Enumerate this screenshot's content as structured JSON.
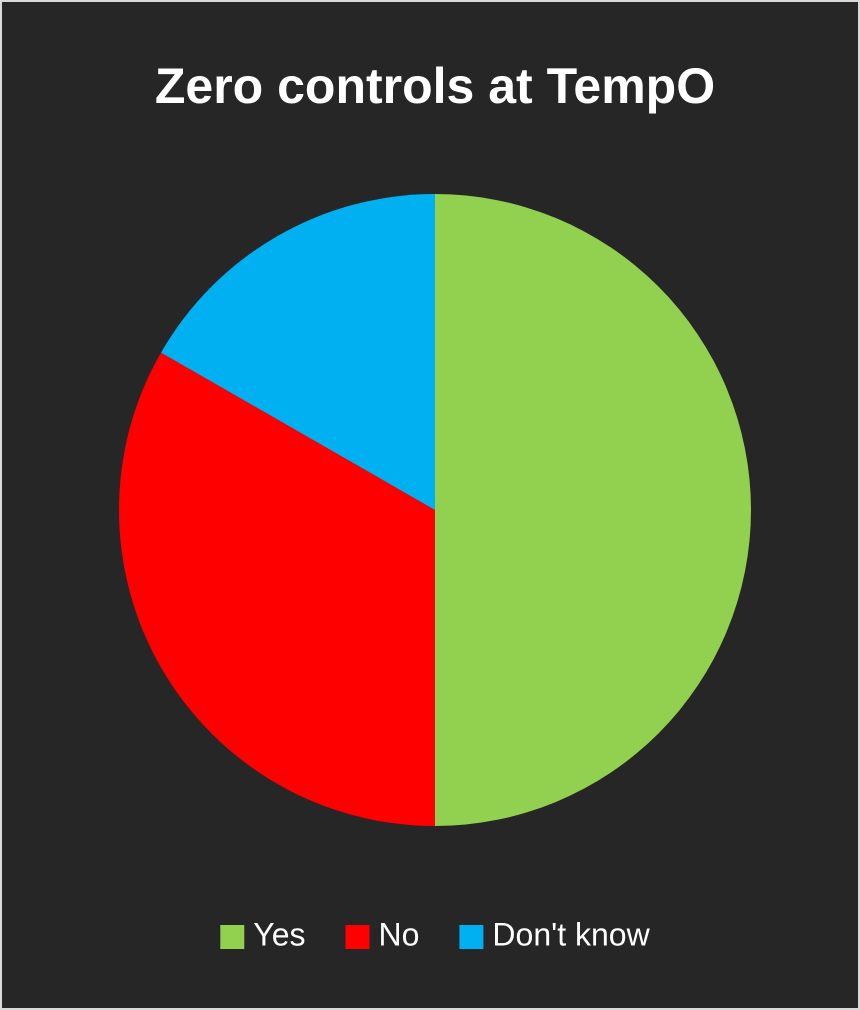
{
  "chart_data": {
    "type": "pie",
    "title": "Zero controls at TempO",
    "categories": [
      "Yes",
      "No",
      "Don't know"
    ],
    "values": [
      50,
      33.3,
      16.7
    ],
    "colors": [
      "#92d050",
      "#ff0000",
      "#00b0f0"
    ],
    "legend": "bottom"
  }
}
